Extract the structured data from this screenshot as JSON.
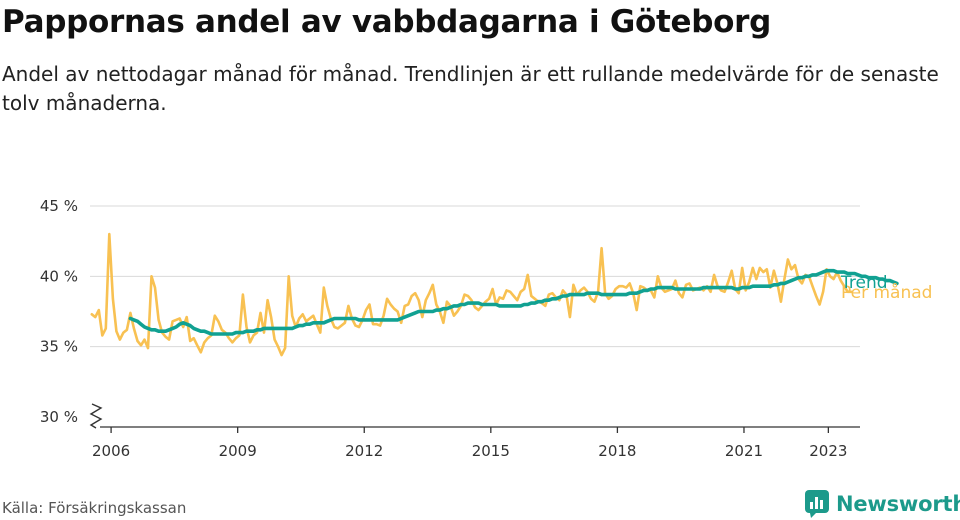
{
  "header": {
    "title": "Pappornas andel av vabbdagarna i Göteborg",
    "subtitle": "Andel av nettodagar månad för månad. Trendlinjen är ett rullande medelvärde för de senaste tolv månaderna."
  },
  "footer": {
    "source": "Källa: Försäkringskassan",
    "brand": "Newsworthy",
    "brand_icon": "newsworthy-logo-icon"
  },
  "chart_data": {
    "type": "line",
    "ylim": [
      30,
      45
    ],
    "y_ticks": [
      30,
      35,
      40,
      45
    ],
    "y_tick_labels": [
      "30 %",
      "35 %",
      "40 %",
      "45 %"
    ],
    "y_axis_break": true,
    "x_ticks": [
      2006,
      2009,
      2012,
      2015,
      2018,
      2021,
      2023
    ],
    "x_tick_labels": [
      "2006",
      "2009",
      "2012",
      "2015",
      "2018",
      "2021",
      "2023"
    ],
    "grid": "horizontal",
    "colors": {
      "per_month": "#f8c152",
      "trend": "#11a192"
    },
    "series": [
      {
        "name": "Per månad",
        "start": "2006-01",
        "values": [
          37.3,
          37.1,
          37.6,
          35.8,
          36.3,
          43.0,
          38.4,
          36.1,
          35.5,
          36.0,
          36.2,
          37.4,
          36.3,
          35.4,
          35.1,
          35.5,
          34.9,
          40.0,
          39.2,
          36.9,
          36.0,
          35.7,
          35.5,
          36.8,
          36.9,
          37.0,
          36.4,
          37.1,
          35.4,
          35.6,
          35.1,
          34.6,
          35.3,
          35.6,
          35.8,
          37.2,
          36.8,
          36.2,
          36.0,
          35.6,
          35.3,
          35.6,
          35.8,
          38.7,
          36.4,
          35.3,
          35.8,
          36.0,
          37.4,
          36.0,
          38.3,
          37.1,
          35.5,
          35.0,
          34.4,
          34.9,
          40.0,
          37.2,
          36.4,
          37.0,
          37.3,
          36.8,
          37.0,
          37.2,
          36.6,
          36.0,
          39.2,
          37.9,
          37.0,
          36.4,
          36.3,
          36.5,
          36.7,
          37.9,
          37.0,
          36.5,
          36.4,
          36.9,
          37.6,
          38.0,
          36.6,
          36.6,
          36.5,
          37.2,
          38.4,
          38.0,
          37.7,
          37.5,
          36.7,
          37.9,
          38.0,
          38.6,
          38.8,
          38.3,
          37.1,
          38.3,
          38.8,
          39.4,
          38.0,
          37.5,
          36.7,
          38.2,
          37.9,
          37.2,
          37.5,
          37.9,
          38.7,
          38.6,
          38.3,
          37.8,
          37.6,
          37.9,
          38.2,
          38.4,
          39.1,
          38.0,
          38.5,
          38.4,
          39.0,
          38.9,
          38.6,
          38.3,
          38.9,
          39.1,
          40.1,
          38.6,
          38.4,
          38.2,
          38.1,
          37.9,
          38.7,
          38.8,
          38.5,
          38.3,
          39.0,
          38.7,
          37.1,
          39.4,
          38.7,
          39.0,
          39.2,
          38.9,
          38.4,
          38.2,
          38.9,
          42.0,
          38.8,
          38.4,
          38.6,
          39.1,
          39.3,
          39.3,
          39.2,
          39.5,
          38.8,
          37.6,
          39.3,
          39.2,
          39.0,
          39.0,
          38.5,
          40.0,
          39.2,
          38.9,
          39.0,
          39.1,
          39.7,
          38.8,
          38.5,
          39.4,
          39.5,
          39.0,
          39.1,
          39.2,
          39.0,
          39.3,
          38.9,
          40.1,
          39.3,
          39.0,
          38.9,
          39.6,
          40.4,
          39.1,
          38.8,
          40.6,
          39.0,
          39.6,
          40.6,
          39.8,
          40.6,
          40.3,
          40.5,
          39.2,
          40.4,
          39.5,
          38.2,
          39.8,
          41.2,
          40.5,
          40.8,
          39.8,
          39.5,
          40.1,
          40.0,
          39.3,
          38.6,
          38.0,
          38.9,
          40.5,
          40.0,
          39.8,
          40.3,
          39.7,
          39.3,
          38.9,
          38.9
        ],
        "end_label": "Per månad"
      },
      {
        "name": "Trend",
        "start": "2006-12",
        "values": [
          37.0,
          36.9,
          36.8,
          36.6,
          36.4,
          36.3,
          36.2,
          36.2,
          36.1,
          36.1,
          36.1,
          36.2,
          36.3,
          36.4,
          36.6,
          36.7,
          36.6,
          36.5,
          36.3,
          36.2,
          36.1,
          36.1,
          36.0,
          35.9,
          35.9,
          35.9,
          35.9,
          35.9,
          35.9,
          35.9,
          36.0,
          36.0,
          36.0,
          36.1,
          36.1,
          36.1,
          36.2,
          36.2,
          36.3,
          36.3,
          36.3,
          36.3,
          36.3,
          36.3,
          36.3,
          36.3,
          36.3,
          36.4,
          36.5,
          36.5,
          36.6,
          36.6,
          36.7,
          36.7,
          36.7,
          36.7,
          36.8,
          36.9,
          37.0,
          37.0,
          37.0,
          37.0,
          37.0,
          37.0,
          37.0,
          36.9,
          36.9,
          36.9,
          36.9,
          36.9,
          36.9,
          36.9,
          36.9,
          36.9,
          36.9,
          36.9,
          36.9,
          37.0,
          37.1,
          37.2,
          37.3,
          37.4,
          37.5,
          37.5,
          37.5,
          37.5,
          37.5,
          37.6,
          37.6,
          37.7,
          37.7,
          37.8,
          37.9,
          37.9,
          38.0,
          38.0,
          38.1,
          38.1,
          38.1,
          38.1,
          38.0,
          38.0,
          38.0,
          38.0,
          38.0,
          37.9,
          37.9,
          37.9,
          37.9,
          37.9,
          37.9,
          37.9,
          38.0,
          38.0,
          38.1,
          38.1,
          38.2,
          38.2,
          38.3,
          38.3,
          38.4,
          38.4,
          38.5,
          38.6,
          38.6,
          38.7,
          38.7,
          38.7,
          38.7,
          38.7,
          38.8,
          38.8,
          38.8,
          38.8,
          38.7,
          38.7,
          38.7,
          38.7,
          38.7,
          38.7,
          38.7,
          38.7,
          38.8,
          38.8,
          38.8,
          38.9,
          39.0,
          39.0,
          39.1,
          39.1,
          39.2,
          39.2,
          39.2,
          39.2,
          39.2,
          39.1,
          39.1,
          39.1,
          39.1,
          39.1,
          39.1,
          39.1,
          39.1,
          39.2,
          39.2,
          39.2,
          39.2,
          39.2,
          39.2,
          39.2,
          39.2,
          39.2,
          39.1,
          39.1,
          39.2,
          39.2,
          39.2,
          39.3,
          39.3,
          39.3,
          39.3,
          39.3,
          39.3,
          39.4,
          39.4,
          39.5,
          39.5,
          39.6,
          39.7,
          39.8,
          39.9,
          39.9,
          40.0,
          40.0,
          40.1,
          40.1,
          40.2,
          40.3,
          40.4,
          40.4,
          40.4,
          40.3,
          40.3,
          40.3,
          40.2,
          40.2,
          40.2,
          40.1,
          40.0,
          40.0,
          39.9,
          39.9,
          39.9,
          39.8,
          39.8,
          39.7,
          39.7,
          39.6,
          39.5
        ],
        "end_label": "Trend"
      }
    ]
  }
}
